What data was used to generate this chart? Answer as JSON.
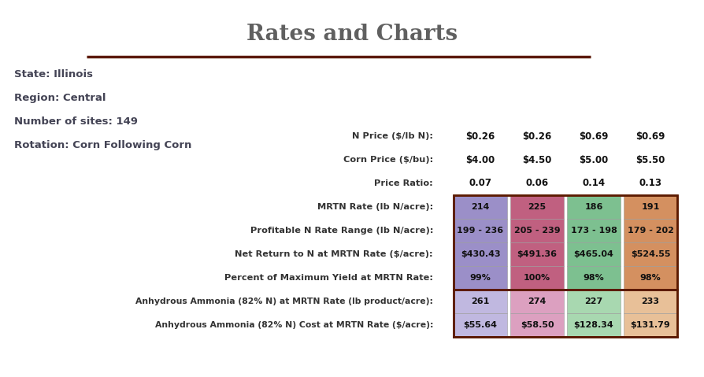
{
  "title": "Rates and Charts",
  "title_color": "#606060",
  "title_fontsize": 20,
  "divider_color": "#5C1A00",
  "info_lines": [
    "State: Illinois",
    "Region: Central",
    "Number of sites: 149",
    "Rotation: Corn Following Corn"
  ],
  "header_rows": [
    [
      "N Price ($/lb N):",
      "$0.26",
      "$0.26",
      "$0.69",
      "$0.69"
    ],
    [
      "Corn Price ($/bu):",
      "$4.00",
      "$4.50",
      "$5.00",
      "$5.50"
    ],
    [
      "Price Ratio:",
      "0.07",
      "0.06",
      "0.14",
      "0.13"
    ]
  ],
  "colored_rows": [
    [
      "MRTN Rate (lb N/acre):",
      "214",
      "225",
      "186",
      "191"
    ],
    [
      "Profitable N Rate Range (lb N/acre):",
      "199 - 236",
      "205 - 239",
      "173 - 198",
      "179 - 202"
    ],
    [
      "Net Return to N at MRTN Rate ($/acre):",
      "$430.43",
      "$491.36",
      "$465.04",
      "$524.55"
    ],
    [
      "Percent of Maximum Yield at MRTN Rate:",
      "99%",
      "100%",
      "98%",
      "98%"
    ]
  ],
  "bottom_rows": [
    [
      "Anhydrous Ammonia (82% N) at MRTN Rate (lb product/acre):",
      "261",
      "274",
      "227",
      "233"
    ],
    [
      "Anhydrous Ammonia (82% N) Cost at MRTN Rate ($/acre):",
      "$55.64",
      "$58.50",
      "$128.34",
      "$131.79"
    ]
  ],
  "cell_colors": [
    "#9B8FC8",
    "#C06080",
    "#7DC090",
    "#D49060"
  ],
  "bottom_cell_colors": [
    "#C0B8E0",
    "#DCA0C0",
    "#A8D8B0",
    "#E8C098"
  ],
  "bg_color": "#FFFFFF",
  "table_border_color": "#5C1A00",
  "text_color": "#333333",
  "header_text_color": "#222222"
}
